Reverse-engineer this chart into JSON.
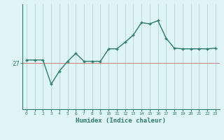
{
  "xlabel": "Humidex (Indice chaleur)",
  "x_values": [
    0,
    1,
    2,
    3,
    4,
    5,
    6,
    7,
    8,
    9,
    10,
    11,
    12,
    13,
    14,
    15,
    16,
    17,
    18,
    19,
    20,
    21,
    22,
    23
  ],
  "y_values": [
    27.5,
    27.5,
    27.5,
    23.8,
    25.8,
    27.3,
    28.5,
    27.3,
    27.3,
    27.3,
    29.2,
    29.2,
    30.2,
    31.3,
    33.2,
    33.0,
    33.5,
    30.8,
    29.3,
    29.2,
    29.2,
    29.2,
    29.2,
    29.3
  ],
  "hline_y": 27,
  "hline_color": "#cc8888",
  "line_color": "#2d7a6e",
  "marker": "+",
  "bg_color": "#dff4f4",
  "grid_color": "#b8dada",
  "axes_color": "#2d7a6e",
  "tick_label_color": "#2d7a6e",
  "label_color": "#2d7a6e",
  "ylim": [
    20,
    36
  ],
  "ytick_values": [
    27
  ],
  "vgrid_positions": [
    0,
    1,
    2,
    3,
    4,
    5,
    6,
    7,
    8,
    9,
    10,
    11,
    12,
    13,
    14,
    15,
    16,
    17,
    18,
    19,
    20,
    21,
    22,
    23
  ]
}
